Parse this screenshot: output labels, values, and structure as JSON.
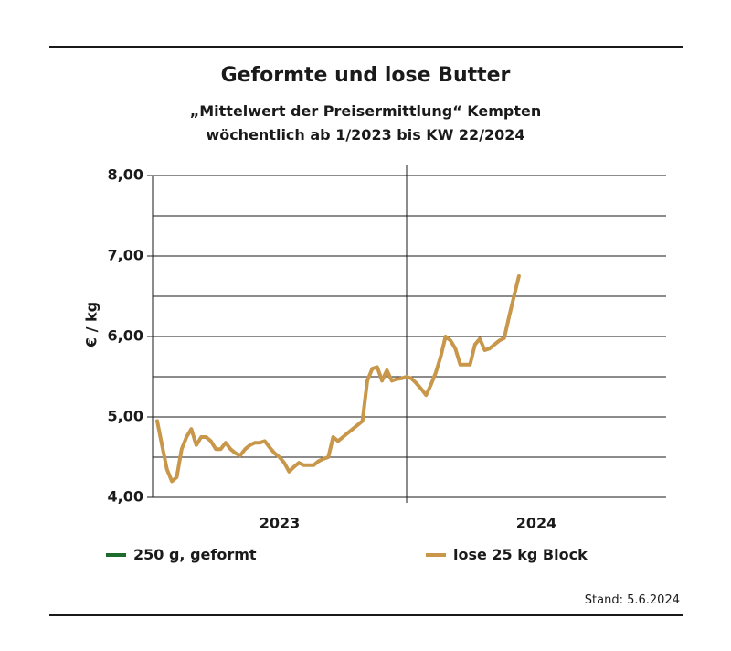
{
  "header": {
    "title": "Geformte und lose Butter",
    "subtitle_line1": "„Mittelwert der Preisermittlung“ Kempten",
    "subtitle_line2": "wöchentlich ab 1/2023 bis KW 22/2024"
  },
  "footer": {
    "stand": "Stand:  5.6.2024"
  },
  "colors": {
    "formed": "#1e6b2e",
    "block": "#c8974a",
    "grid": "#1a1a1a"
  },
  "chart_data": {
    "type": "line",
    "ylabel": "€ / kg",
    "ylim": [
      4.0,
      8.0
    ],
    "yticks": [
      "4,00",
      "5,00",
      "6,00",
      "7,00",
      "8,00"
    ],
    "xcategories": [
      "2023",
      "2024"
    ],
    "grid": true,
    "legend": "bottom",
    "series": [
      {
        "name": "250 g, geformt",
        "color": "#1e6b2e",
        "values": []
      },
      {
        "name": "lose 25 kg Block",
        "color": "#c8974a",
        "values": [
          4.95,
          4.65,
          4.35,
          4.2,
          4.25,
          4.6,
          4.75,
          4.85,
          4.65,
          4.75,
          4.75,
          4.7,
          4.6,
          4.6,
          4.68,
          4.6,
          4.55,
          4.52,
          4.6,
          4.65,
          4.68,
          4.68,
          4.7,
          4.62,
          4.55,
          4.5,
          4.43,
          4.32,
          4.38,
          4.43,
          4.4,
          4.4,
          4.4,
          4.45,
          4.48,
          4.5,
          4.75,
          4.7,
          4.75,
          4.8,
          4.85,
          4.9,
          4.95,
          5.45,
          5.6,
          5.62,
          5.45,
          5.58,
          5.45,
          5.47,
          5.48,
          5.5,
          5.48,
          5.42,
          5.35,
          5.27,
          5.4,
          5.55,
          5.75,
          6.0,
          5.95,
          5.85,
          5.65,
          5.65,
          5.65,
          5.9,
          5.97,
          5.83,
          5.85,
          5.9,
          5.95,
          5.98,
          6.25,
          6.5,
          6.75
        ]
      }
    ]
  }
}
